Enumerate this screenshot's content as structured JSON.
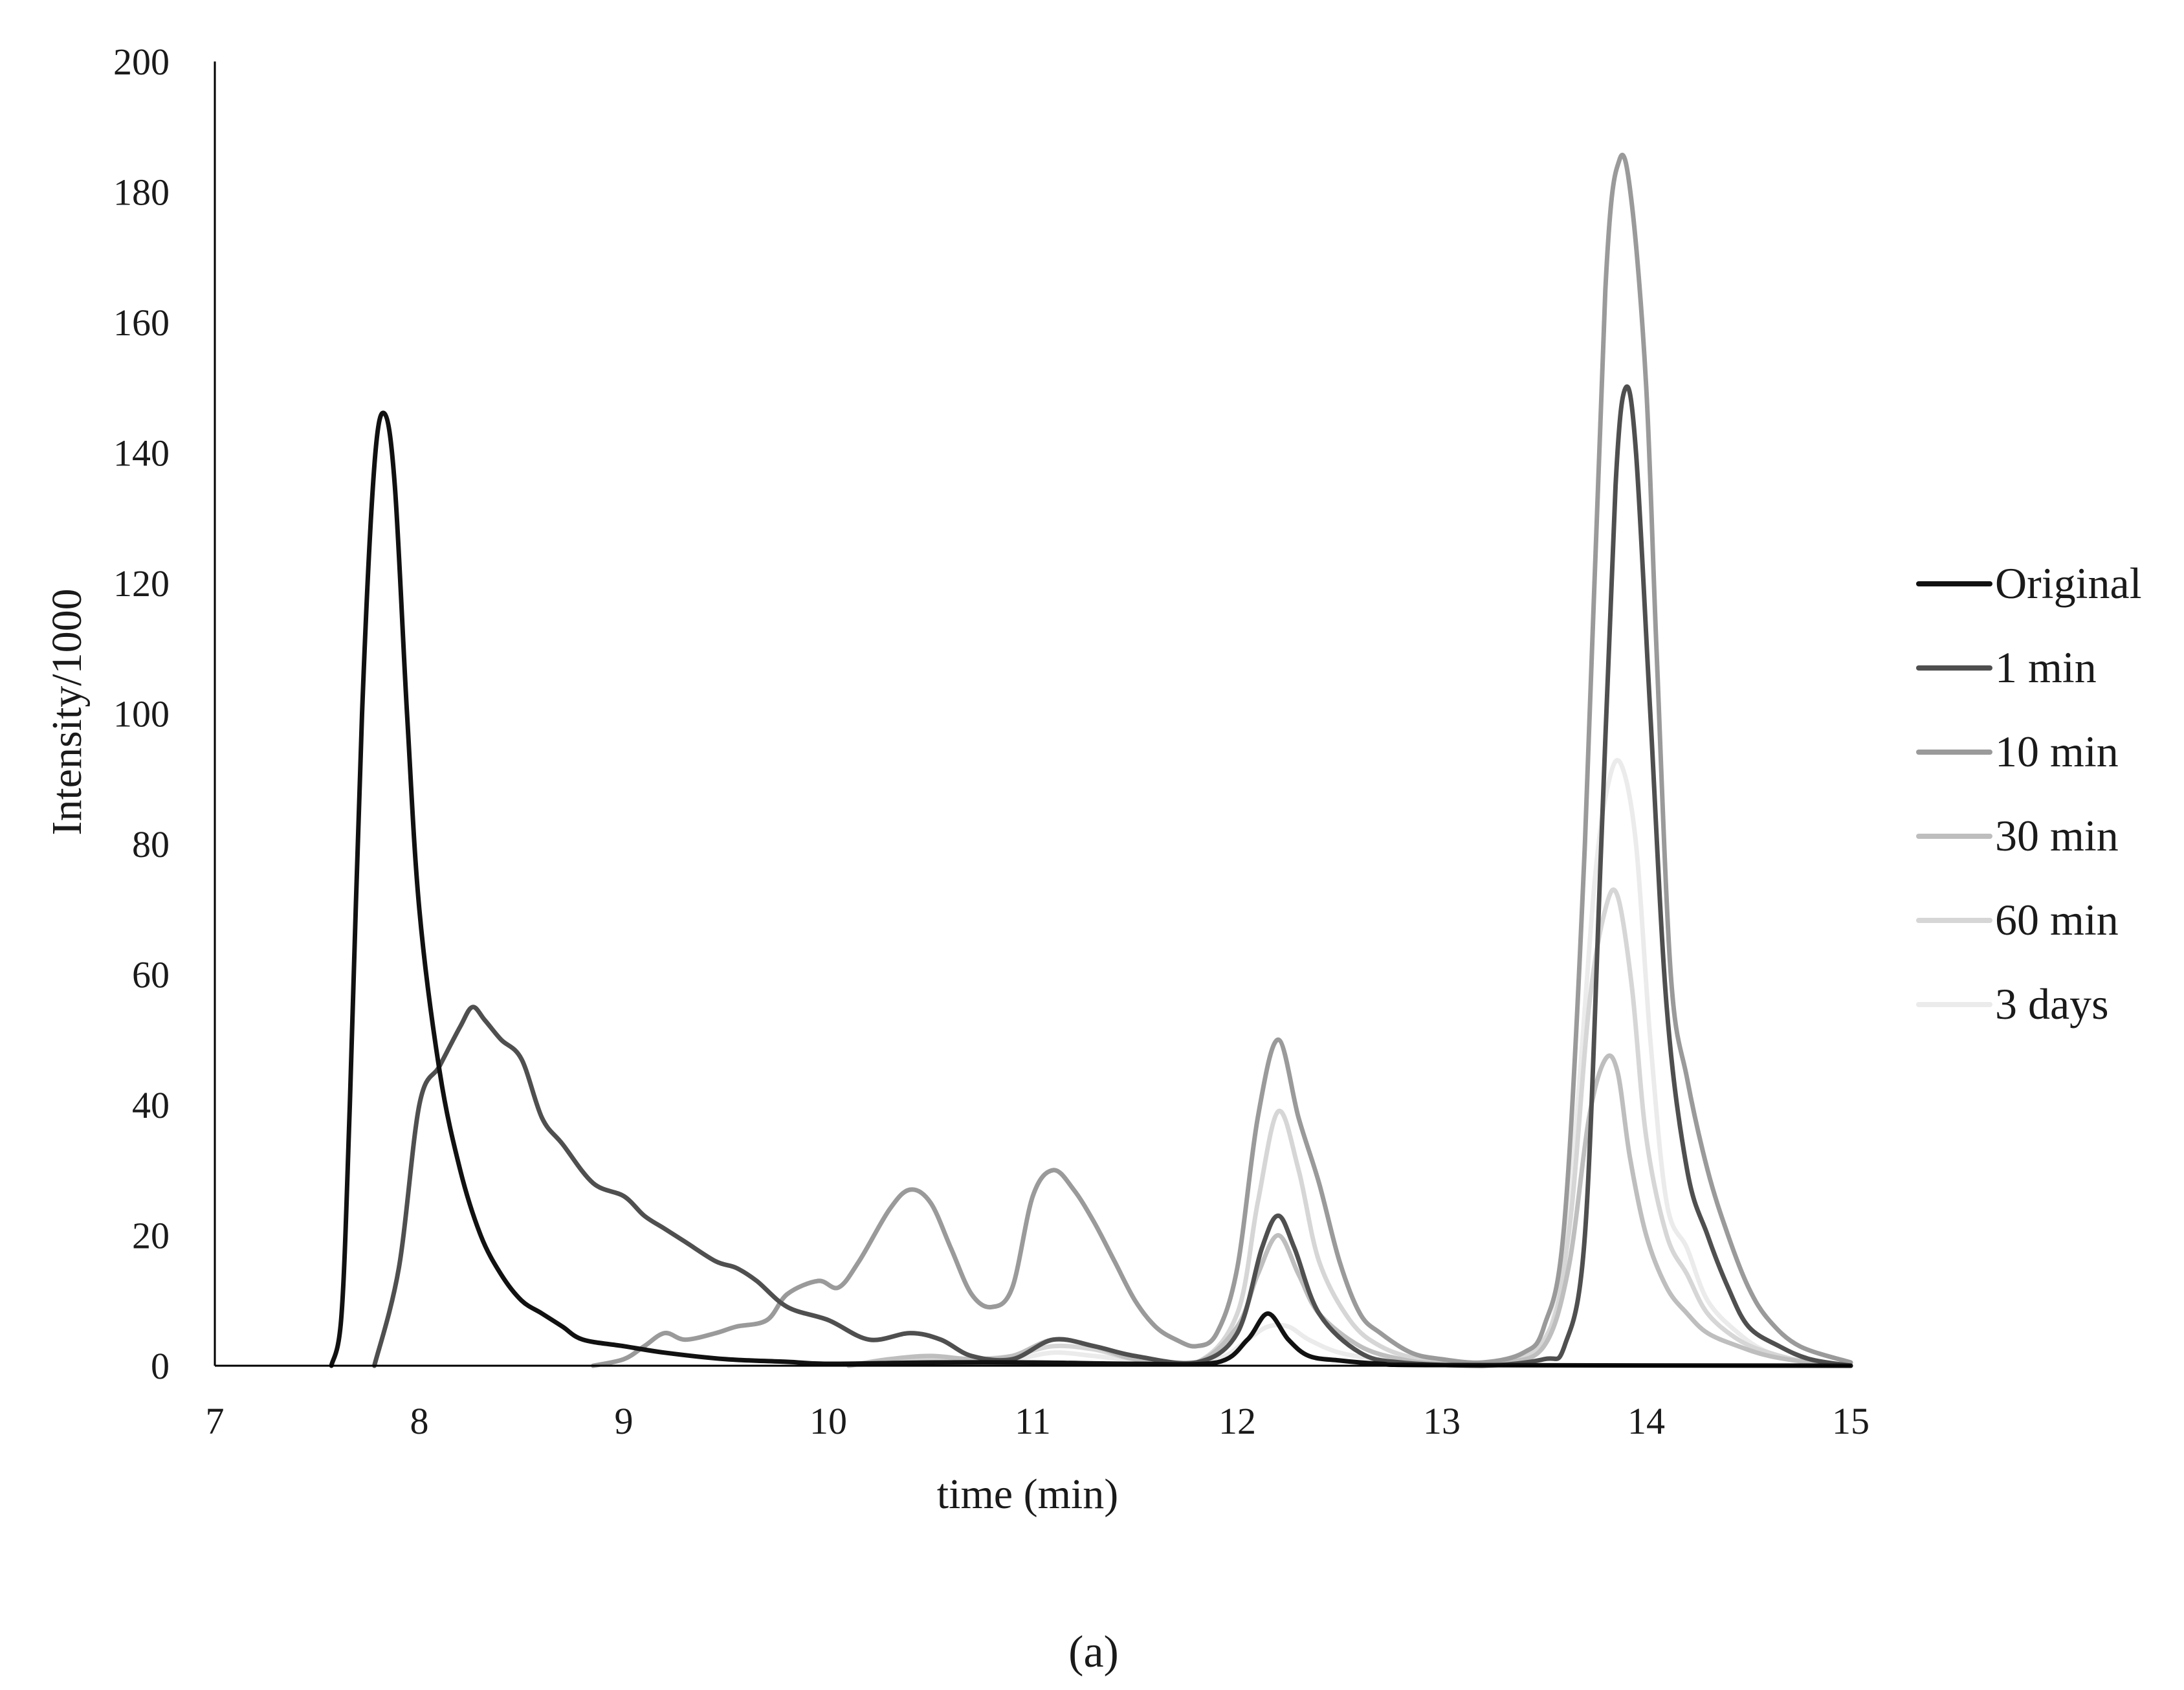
{
  "chart_data": {
    "type": "line",
    "xlabel": "time (min)",
    "ylabel": "Intensity/1000",
    "xlim": [
      7,
      15
    ],
    "ylim": [
      0,
      200
    ],
    "x_ticks": [
      7,
      8,
      9,
      10,
      11,
      12,
      13,
      14,
      15
    ],
    "y_ticks": [
      0,
      20,
      40,
      60,
      80,
      100,
      120,
      140,
      160,
      180,
      200
    ],
    "grid": false,
    "legend_position": "right",
    "panel_label": "(a)",
    "series": [
      {
        "name": "Original",
        "color": "#111111",
        "points": [
          [
            7.57,
            0
          ],
          [
            7.62,
            8
          ],
          [
            7.66,
            40
          ],
          [
            7.72,
            100
          ],
          [
            7.78,
            138
          ],
          [
            7.83,
            146
          ],
          [
            7.88,
            135
          ],
          [
            7.94,
            100
          ],
          [
            8.0,
            70
          ],
          [
            8.1,
            45
          ],
          [
            8.2,
            30
          ],
          [
            8.3,
            20
          ],
          [
            8.4,
            14
          ],
          [
            8.5,
            10
          ],
          [
            8.6,
            8
          ],
          [
            8.7,
            6
          ],
          [
            8.8,
            4
          ],
          [
            9.0,
            3
          ],
          [
            9.2,
            2
          ],
          [
            9.5,
            1
          ],
          [
            9.8,
            0.6
          ],
          [
            10.0,
            0.3
          ],
          [
            10.5,
            0.5
          ],
          [
            11.0,
            0.5
          ],
          [
            11.5,
            0.3
          ],
          [
            11.9,
            0.5
          ],
          [
            12.05,
            4
          ],
          [
            12.15,
            8
          ],
          [
            12.25,
            4
          ],
          [
            12.35,
            1.5
          ],
          [
            12.5,
            0.8
          ],
          [
            12.7,
            0.3
          ],
          [
            13.0,
            0.1
          ],
          [
            15.0,
            0
          ]
        ]
      },
      {
        "name": "1 min",
        "color": "#4f4f4f",
        "points": [
          [
            7.78,
            0
          ],
          [
            7.9,
            15
          ],
          [
            8.0,
            40
          ],
          [
            8.1,
            46
          ],
          [
            8.2,
            52
          ],
          [
            8.26,
            55
          ],
          [
            8.32,
            53
          ],
          [
            8.4,
            50
          ],
          [
            8.5,
            47
          ],
          [
            8.6,
            38
          ],
          [
            8.7,
            34
          ],
          [
            8.85,
            28
          ],
          [
            9.0,
            26
          ],
          [
            9.1,
            23
          ],
          [
            9.2,
            21
          ],
          [
            9.3,
            19
          ],
          [
            9.45,
            16
          ],
          [
            9.55,
            15
          ],
          [
            9.65,
            13
          ],
          [
            9.8,
            9
          ],
          [
            10.0,
            7
          ],
          [
            10.2,
            4
          ],
          [
            10.4,
            5
          ],
          [
            10.55,
            4
          ],
          [
            10.7,
            1.5
          ],
          [
            10.9,
            1
          ],
          [
            11.1,
            4
          ],
          [
            11.3,
            3
          ],
          [
            11.5,
            1.5
          ],
          [
            11.8,
            0.5
          ],
          [
            12.0,
            5
          ],
          [
            12.12,
            18
          ],
          [
            12.2,
            23
          ],
          [
            12.28,
            18
          ],
          [
            12.4,
            8
          ],
          [
            12.6,
            2
          ],
          [
            12.8,
            0.5
          ],
          [
            13.2,
            0
          ],
          [
            13.5,
            1
          ],
          [
            13.6,
            3
          ],
          [
            13.7,
            20
          ],
          [
            13.78,
            80
          ],
          [
            13.85,
            135
          ],
          [
            13.9,
            150
          ],
          [
            13.95,
            140
          ],
          [
            14.02,
            100
          ],
          [
            14.1,
            55
          ],
          [
            14.2,
            30
          ],
          [
            14.3,
            20
          ],
          [
            14.4,
            12
          ],
          [
            14.5,
            6
          ],
          [
            14.65,
            3
          ],
          [
            14.8,
            1
          ],
          [
            15.0,
            0
          ]
        ]
      },
      {
        "name": "10 min",
        "color": "#9a9a9a",
        "points": [
          [
            8.85,
            0
          ],
          [
            9.0,
            1
          ],
          [
            9.1,
            3
          ],
          [
            9.2,
            5
          ],
          [
            9.3,
            4
          ],
          [
            9.45,
            5
          ],
          [
            9.55,
            6
          ],
          [
            9.7,
            7
          ],
          [
            9.8,
            11
          ],
          [
            9.95,
            13
          ],
          [
            10.05,
            12
          ],
          [
            10.15,
            16
          ],
          [
            10.3,
            24
          ],
          [
            10.4,
            27
          ],
          [
            10.5,
            25
          ],
          [
            10.6,
            18
          ],
          [
            10.7,
            11
          ],
          [
            10.8,
            9
          ],
          [
            10.9,
            12
          ],
          [
            11.0,
            26
          ],
          [
            11.1,
            30
          ],
          [
            11.2,
            27
          ],
          [
            11.3,
            22
          ],
          [
            11.4,
            16
          ],
          [
            11.5,
            10
          ],
          [
            11.6,
            6
          ],
          [
            11.7,
            4
          ],
          [
            11.8,
            3
          ],
          [
            11.9,
            5
          ],
          [
            12.0,
            15
          ],
          [
            12.1,
            38
          ],
          [
            12.2,
            50
          ],
          [
            12.3,
            38
          ],
          [
            12.4,
            28
          ],
          [
            12.5,
            16
          ],
          [
            12.6,
            8
          ],
          [
            12.7,
            5
          ],
          [
            12.85,
            2
          ],
          [
            13.0,
            1
          ],
          [
            13.2,
            0.5
          ],
          [
            13.4,
            2
          ],
          [
            13.5,
            6
          ],
          [
            13.6,
            22
          ],
          [
            13.7,
            80
          ],
          [
            13.8,
            165
          ],
          [
            13.87,
            185
          ],
          [
            13.93,
            178
          ],
          [
            14.0,
            150
          ],
          [
            14.05,
            110
          ],
          [
            14.12,
            60
          ],
          [
            14.2,
            44
          ],
          [
            14.3,
            30
          ],
          [
            14.4,
            20
          ],
          [
            14.5,
            12
          ],
          [
            14.6,
            7
          ],
          [
            14.75,
            3
          ],
          [
            15.0,
            0.5
          ]
        ]
      },
      {
        "name": "30 min",
        "color": "#bebebe",
        "points": [
          [
            10.1,
            0
          ],
          [
            10.3,
            1
          ],
          [
            10.5,
            1.5
          ],
          [
            10.7,
            1
          ],
          [
            10.9,
            1.5
          ],
          [
            11.1,
            4
          ],
          [
            11.3,
            3
          ],
          [
            11.5,
            1
          ],
          [
            11.8,
            0.5
          ],
          [
            12.0,
            6
          ],
          [
            12.1,
            14
          ],
          [
            12.2,
            20
          ],
          [
            12.3,
            14
          ],
          [
            12.4,
            8
          ],
          [
            12.6,
            3
          ],
          [
            12.8,
            1
          ],
          [
            13.0,
            0.3
          ],
          [
            13.3,
            0.5
          ],
          [
            13.5,
            3
          ],
          [
            13.62,
            15
          ],
          [
            13.72,
            38
          ],
          [
            13.8,
            47
          ],
          [
            13.86,
            45
          ],
          [
            13.92,
            32
          ],
          [
            14.0,
            20
          ],
          [
            14.1,
            12
          ],
          [
            14.2,
            8
          ],
          [
            14.3,
            5
          ],
          [
            14.45,
            3
          ],
          [
            14.6,
            1.5
          ],
          [
            14.8,
            0.5
          ],
          [
            15.0,
            0
          ]
        ]
      },
      {
        "name": "60 min",
        "color": "#d6d6d6",
        "points": [
          [
            10.1,
            0
          ],
          [
            10.3,
            1
          ],
          [
            10.5,
            1.2
          ],
          [
            10.7,
            1
          ],
          [
            10.9,
            1.5
          ],
          [
            11.1,
            3
          ],
          [
            11.3,
            2.5
          ],
          [
            11.5,
            1
          ],
          [
            11.8,
            0.5
          ],
          [
            12.0,
            8
          ],
          [
            12.1,
            25
          ],
          [
            12.2,
            39
          ],
          [
            12.3,
            30
          ],
          [
            12.4,
            16
          ],
          [
            12.55,
            7
          ],
          [
            12.7,
            3
          ],
          [
            12.9,
            1
          ],
          [
            13.2,
            0.3
          ],
          [
            13.5,
            4
          ],
          [
            13.62,
            20
          ],
          [
            13.72,
            55
          ],
          [
            13.8,
            70
          ],
          [
            13.86,
            72
          ],
          [
            13.93,
            58
          ],
          [
            14.0,
            35
          ],
          [
            14.1,
            20
          ],
          [
            14.2,
            14
          ],
          [
            14.3,
            8
          ],
          [
            14.45,
            4
          ],
          [
            14.6,
            2
          ],
          [
            14.8,
            0.5
          ],
          [
            15.0,
            0
          ]
        ]
      },
      {
        "name": "3 days",
        "color": "#ebebeb",
        "points": [
          [
            10.1,
            0
          ],
          [
            10.3,
            0.5
          ],
          [
            10.6,
            0.8
          ],
          [
            10.9,
            1
          ],
          [
            11.1,
            2
          ],
          [
            11.3,
            1.5
          ],
          [
            11.6,
            0.5
          ],
          [
            11.9,
            1
          ],
          [
            12.05,
            4
          ],
          [
            12.15,
            6
          ],
          [
            12.25,
            6
          ],
          [
            12.35,
            4
          ],
          [
            12.5,
            2
          ],
          [
            12.7,
            1
          ],
          [
            13.0,
            0.3
          ],
          [
            13.4,
            1
          ],
          [
            13.55,
            8
          ],
          [
            13.65,
            35
          ],
          [
            13.75,
            75
          ],
          [
            13.82,
            90
          ],
          [
            13.88,
            92
          ],
          [
            13.95,
            80
          ],
          [
            14.02,
            50
          ],
          [
            14.1,
            25
          ],
          [
            14.2,
            18
          ],
          [
            14.3,
            10
          ],
          [
            14.45,
            5
          ],
          [
            14.6,
            2
          ],
          [
            14.8,
            0.5
          ],
          [
            15.0,
            0
          ]
        ]
      }
    ]
  }
}
